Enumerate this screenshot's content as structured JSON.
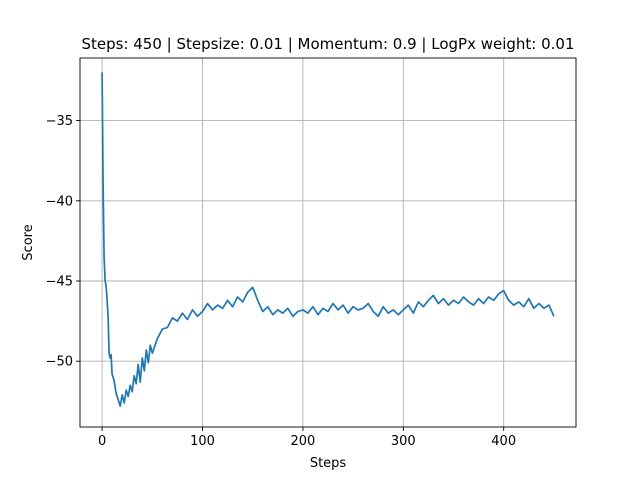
{
  "chart_data": {
    "type": "line",
    "title": "Steps: 450 | Stepsize: 0.01 | Momentum: 0.9 | LogPx weight: 0.01",
    "xlabel": "Steps",
    "ylabel": "Score",
    "xlim": [
      -22,
      472
    ],
    "ylim": [
      -54.1,
      -31.1
    ],
    "xticks": [
      0,
      100,
      200,
      300,
      400
    ],
    "yticks": [
      -35,
      -40,
      -45,
      -50
    ],
    "grid": true,
    "line_color": "#1f77b4",
    "series": [
      {
        "x": [
          0,
          1,
          2,
          3,
          4,
          5,
          6,
          7,
          8,
          9,
          10,
          12,
          14,
          16,
          18,
          20,
          22,
          24,
          26,
          28,
          30,
          32,
          34,
          36,
          38,
          40,
          42,
          44,
          46,
          48,
          50,
          55,
          60,
          65,
          70,
          75,
          80,
          85,
          90,
          95,
          100,
          105,
          110,
          115,
          120,
          125,
          130,
          135,
          140,
          145,
          150,
          155,
          160,
          165,
          170,
          175,
          180,
          185,
          190,
          195,
          200,
          205,
          210,
          215,
          220,
          225,
          230,
          235,
          240,
          245,
          250,
          255,
          260,
          265,
          270,
          275,
          280,
          285,
          290,
          295,
          300,
          305,
          310,
          315,
          320,
          325,
          330,
          335,
          340,
          345,
          350,
          355,
          360,
          365,
          370,
          375,
          380,
          385,
          390,
          395,
          400,
          405,
          410,
          415,
          420,
          425,
          430,
          435,
          440,
          445,
          450
        ],
        "y": [
          -32.0,
          -39.0,
          -43.5,
          -45.0,
          -45.3,
          -46.2,
          -47.2,
          -49.5,
          -49.8,
          -49.6,
          -50.8,
          -51.2,
          -52.0,
          -52.4,
          -52.8,
          -52.1,
          -52.6,
          -51.8,
          -52.2,
          -51.5,
          -51.9,
          -50.9,
          -51.4,
          -50.2,
          -51.3,
          -49.8,
          -50.6,
          -49.3,
          -50.1,
          -49.0,
          -49.5,
          -48.6,
          -48.0,
          -47.9,
          -47.3,
          -47.5,
          -47.0,
          -47.4,
          -46.8,
          -47.2,
          -46.9,
          -46.4,
          -46.8,
          -46.5,
          -46.7,
          -46.2,
          -46.6,
          -46.0,
          -46.3,
          -45.7,
          -45.4,
          -46.2,
          -46.9,
          -46.6,
          -47.1,
          -46.8,
          -47.0,
          -46.7,
          -47.2,
          -46.9,
          -46.8,
          -47.0,
          -46.6,
          -47.1,
          -46.7,
          -46.9,
          -46.4,
          -46.8,
          -46.5,
          -47.0,
          -46.6,
          -46.8,
          -46.7,
          -46.4,
          -46.9,
          -47.2,
          -46.6,
          -47.0,
          -46.8,
          -47.1,
          -46.8,
          -46.5,
          -47.0,
          -46.3,
          -46.6,
          -46.2,
          -45.9,
          -46.4,
          -46.1,
          -46.5,
          -46.2,
          -46.4,
          -46.0,
          -46.3,
          -46.5,
          -46.1,
          -46.4,
          -46.0,
          -46.2,
          -45.8,
          -45.6,
          -46.2,
          -46.5,
          -46.3,
          -46.6,
          -46.1,
          -46.7,
          -46.4,
          -46.7,
          -46.5,
          -47.2
        ]
      }
    ]
  }
}
